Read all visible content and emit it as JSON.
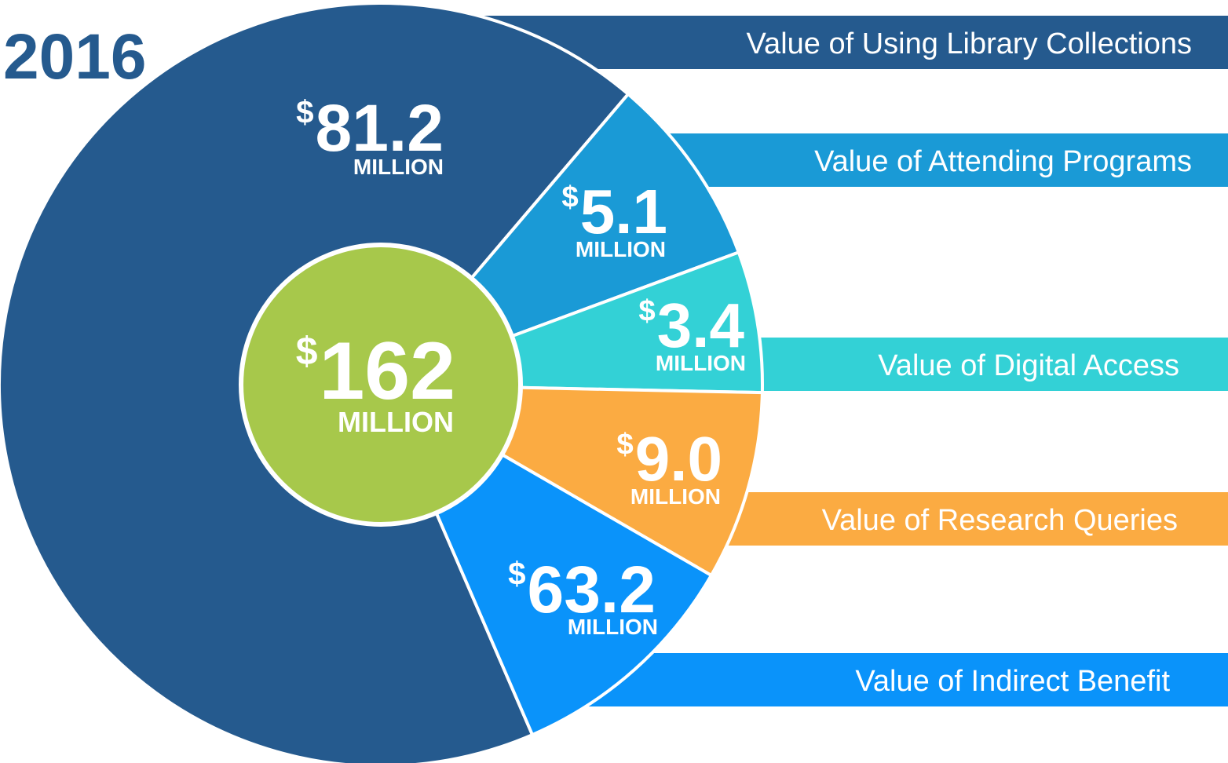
{
  "year": "2016",
  "total": {
    "currency": "$",
    "amount": "162",
    "unit": "MILLION"
  },
  "segments": [
    {
      "label": "Value of Using Library Collections",
      "currency": "$",
      "amount": "81.2",
      "unit": "MILLION",
      "color": "#255a8e"
    },
    {
      "label": "Value of Attending Programs",
      "currency": "$",
      "amount": "5.1",
      "unit": "MILLION",
      "color": "#1a9ad6"
    },
    {
      "label": "Value of Digital Access",
      "currency": "$",
      "amount": "3.4",
      "unit": "MILLION",
      "color": "#33d1d6"
    },
    {
      "label": "Value of Research Queries",
      "currency": "$",
      "amount": "9.0",
      "unit": "MILLION",
      "color": "#fbab42"
    },
    {
      "label": "Value of Indirect Benefit",
      "currency": "$",
      "amount": "63.2",
      "unit": "MILLION",
      "color": "#0a93fa"
    }
  ],
  "total_color": "#a7c84b"
}
